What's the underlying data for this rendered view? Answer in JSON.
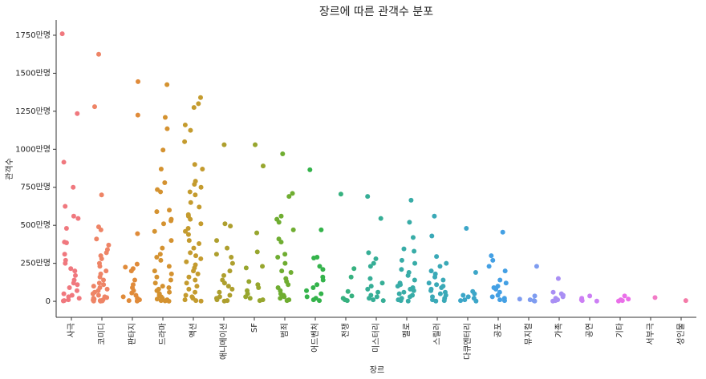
{
  "chart_data": {
    "type": "strip",
    "title": "장르에 따른 관객수 분포",
    "xlabel": "장르",
    "ylabel": "관객수",
    "categories": [
      "사극",
      "코미디",
      "판타지",
      "드라마",
      "액션",
      "애니메이션",
      "SF",
      "범죄",
      "어드벤처",
      "전쟁",
      "미스터리",
      "멜로",
      "스릴러",
      "다큐멘터리",
      "공포",
      "뮤지컬",
      "가족",
      "공연",
      "기타",
      "서부극",
      "성인물"
    ],
    "colors": [
      "#f0787e",
      "#ee8466",
      "#e08b3a",
      "#d49230",
      "#c49b2e",
      "#ae9f2e",
      "#97a62e",
      "#6fad31",
      "#34b34b",
      "#36b17f",
      "#36ae96",
      "#38aca7",
      "#3aa9b7",
      "#3ca6c8",
      "#44a0e4",
      "#7e9cf0",
      "#a98ff4",
      "#cc7ff4",
      "#ea6fe9",
      "#f27bc6",
      "#f47aa8"
    ],
    "values": [
      [
        1760,
        1235,
        915,
        750,
        625,
        560,
        545,
        480,
        390,
        385,
        310,
        270,
        250,
        215,
        200,
        170,
        140,
        120,
        110,
        90,
        70,
        50,
        40,
        30,
        20,
        10,
        5,
        3
      ],
      [
        1625,
        1280,
        700,
        490,
        470,
        410,
        370,
        340,
        320,
        300,
        280,
        250,
        230,
        200,
        180,
        160,
        140,
        120,
        110,
        100,
        90,
        80,
        70,
        60,
        50,
        40,
        30,
        25,
        20,
        15,
        10,
        8,
        5,
        3,
        2,
        1
      ],
      [
        1445,
        1225,
        445,
        245,
        225,
        215,
        200,
        140,
        110,
        90,
        70,
        55,
        40,
        30,
        20,
        10,
        5,
        2
      ],
      [
        1425,
        1210,
        1135,
        995,
        870,
        780,
        735,
        720,
        600,
        590,
        540,
        530,
        510,
        460,
        400,
        350,
        310,
        290,
        270,
        230,
        200,
        180,
        160,
        140,
        120,
        100,
        90,
        80,
        70,
        60,
        50,
        40,
        30,
        20,
        15,
        10,
        5,
        3,
        1
      ],
      [
        1340,
        1300,
        1275,
        1160,
        1125,
        1050,
        900,
        870,
        790,
        770,
        750,
        720,
        700,
        650,
        620,
        570,
        560,
        540,
        510,
        480,
        460,
        440,
        400,
        380,
        350,
        320,
        300,
        280,
        260,
        240,
        220,
        200,
        180,
        160,
        140,
        120,
        100,
        80,
        60,
        40,
        30,
        20,
        10,
        5,
        2
      ],
      [
        1030,
        510,
        495,
        400,
        350,
        310,
        290,
        250,
        200,
        170,
        140,
        120,
        100,
        80,
        60,
        40,
        30,
        20,
        10,
        5,
        2
      ],
      [
        1030,
        890,
        450,
        325,
        230,
        220,
        130,
        110,
        90,
        70,
        50,
        30,
        20,
        10,
        5
      ],
      [
        970,
        710,
        690,
        560,
        540,
        520,
        470,
        410,
        390,
        310,
        290,
        250,
        200,
        190,
        150,
        130,
        110,
        90,
        70,
        50,
        40,
        30,
        20,
        10,
        5
      ],
      [
        865,
        470,
        290,
        285,
        230,
        210,
        160,
        140,
        110,
        90,
        70,
        50,
        30,
        20,
        10,
        5
      ],
      [
        705,
        215,
        160,
        65,
        35,
        20,
        10,
        5
      ],
      [
        690,
        545,
        320,
        280,
        250,
        230,
        150,
        120,
        100,
        80,
        60,
        40,
        30,
        20,
        10,
        5
      ],
      [
        665,
        520,
        420,
        345,
        330,
        270,
        250,
        210,
        190,
        170,
        140,
        120,
        110,
        100,
        90,
        80,
        70,
        60,
        50,
        40,
        30,
        20,
        10,
        5,
        2
      ],
      [
        560,
        430,
        295,
        250,
        230,
        200,
        180,
        160,
        140,
        120,
        110,
        100,
        90,
        80,
        70,
        60,
        50,
        40,
        30,
        20,
        10,
        5,
        2
      ],
      [
        480,
        190,
        65,
        50,
        40,
        30,
        20,
        10,
        5,
        2
      ],
      [
        455,
        300,
        270,
        230,
        200,
        140,
        120,
        100,
        90,
        80,
        60,
        40,
        30,
        20,
        10,
        5
      ],
      [
        230,
        35,
        15,
        10,
        5,
        2
      ],
      [
        150,
        60,
        50,
        40,
        30,
        20,
        10,
        5,
        2
      ],
      [
        35,
        20,
        10,
        5,
        2
      ],
      [
        35,
        15,
        10,
        5,
        2
      ],
      [
        25
      ],
      [
        5
      ]
    ],
    "ylim": [
      -105,
      1850
    ],
    "yticks": [
      0,
      {
        "value": 250,
        "label": "250만명"
      },
      {
        "value": 500,
        "label": "500만명"
      },
      {
        "value": 750,
        "label": "750만명"
      },
      {
        "value": 1000,
        "label": "1000만명"
      },
      {
        "value": 1250,
        "label": "1250만명"
      },
      {
        "value": 1500,
        "label": "1500만명"
      },
      {
        "value": 1750,
        "label": "1750만명"
      }
    ]
  }
}
